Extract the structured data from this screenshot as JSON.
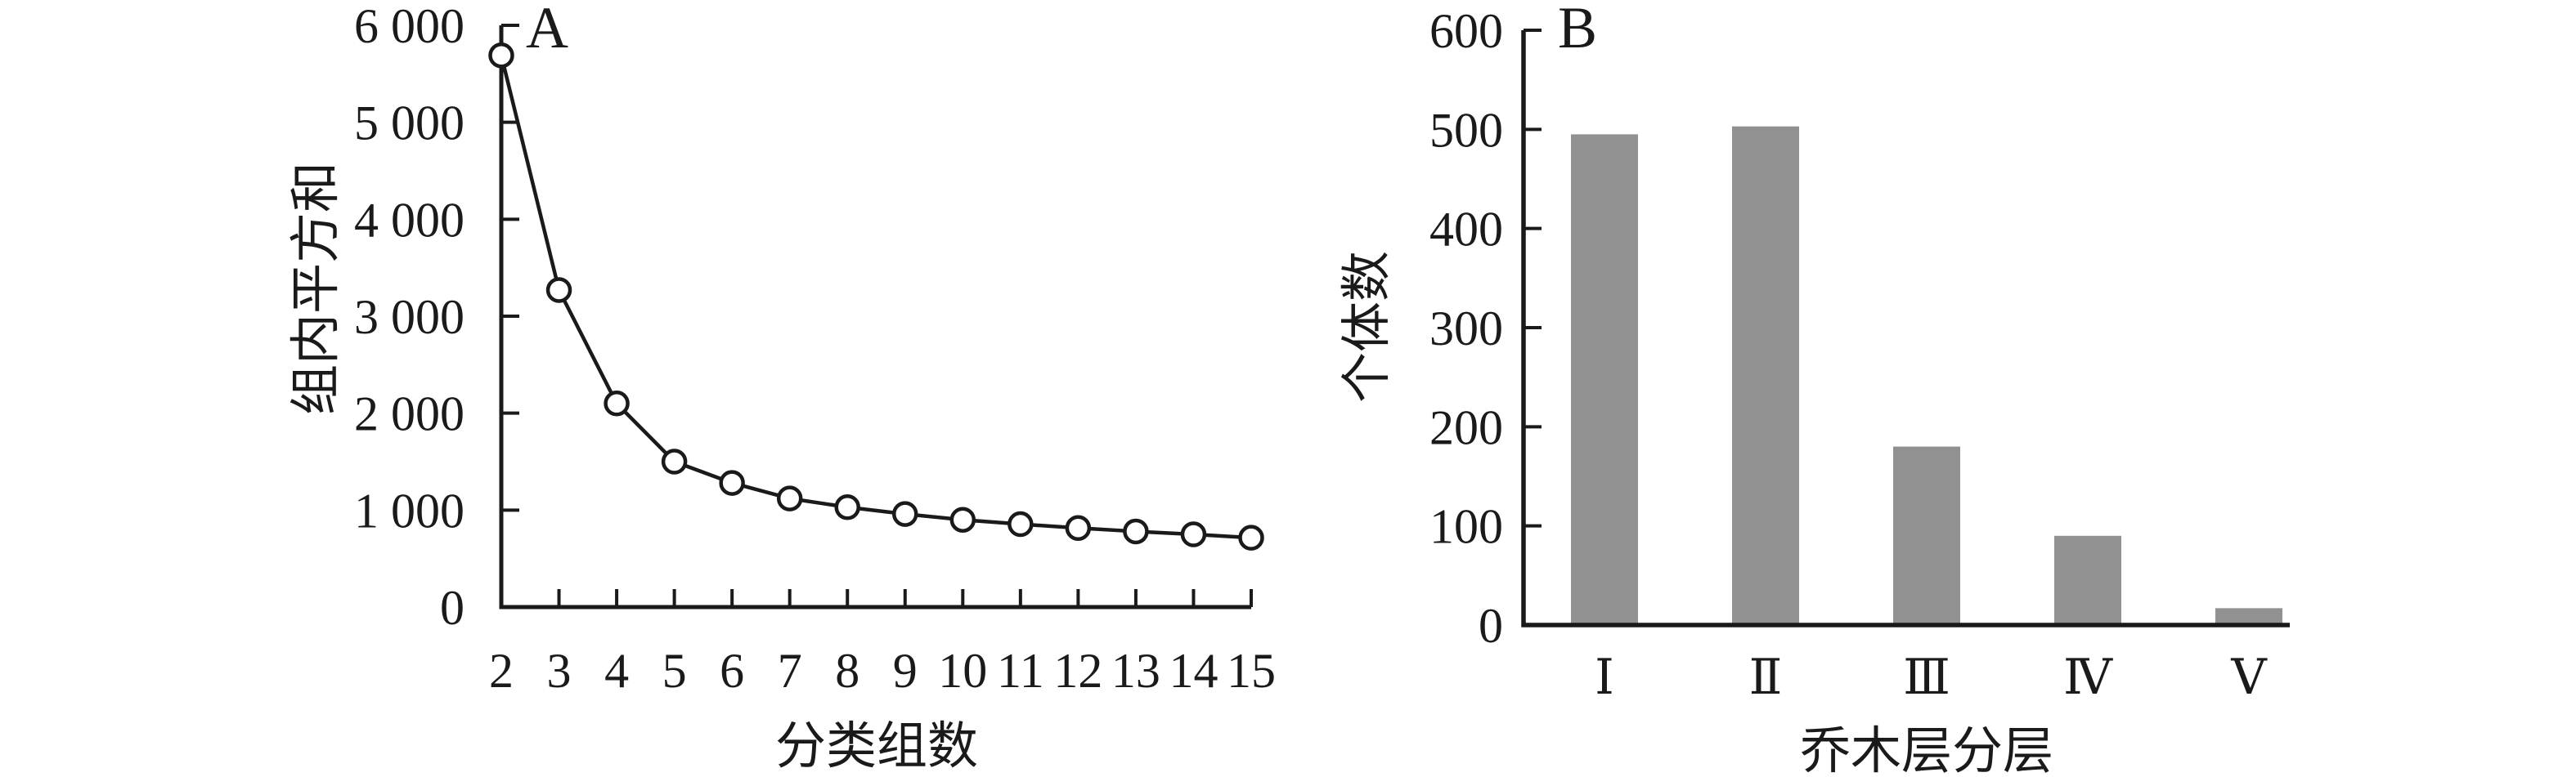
{
  "figure": {
    "background": "#ffffff",
    "text_color": "#1a1a1a",
    "axis_color": "#1a1a1a"
  },
  "chart_data": [
    {
      "panel_label": "A",
      "type": "line",
      "marker": "open-circle",
      "x": [
        2,
        3,
        4,
        5,
        6,
        7,
        8,
        9,
        10,
        11,
        12,
        13,
        14,
        15
      ],
      "values": [
        5690,
        3270,
        2100,
        1500,
        1280,
        1120,
        1030,
        960,
        900,
        855,
        815,
        780,
        750,
        715
      ],
      "xtick_labels": [
        "2",
        "3",
        "4",
        "5",
        "6",
        "7",
        "8",
        "9",
        "10",
        "11",
        "12",
        "13",
        "14",
        "15"
      ],
      "ytick_labels": [
        "0",
        "1 000",
        "2 000",
        "3 000",
        "4 000",
        "5 000",
        "6 000"
      ],
      "ylim": [
        0,
        6000
      ],
      "ytick_interval": 1000,
      "xlabel": "分类组数",
      "ylabel": "组内平方和",
      "line_color": "#1a1a1a",
      "marker_fill": "#ffffff",
      "grid": false,
      "legend_position": "none"
    },
    {
      "panel_label": "B",
      "type": "bar",
      "categories": [
        "Ⅰ",
        "Ⅱ",
        "Ⅲ",
        "Ⅳ",
        "Ⅴ"
      ],
      "values": [
        495,
        503,
        180,
        90,
        17
      ],
      "ytick_labels": [
        "0",
        "100",
        "200",
        "300",
        "400",
        "500",
        "600"
      ],
      "ylim": [
        0,
        600
      ],
      "ytick_interval": 100,
      "xlabel": "乔木层分层",
      "ylabel": "个体数",
      "bar_color": "#919191",
      "grid": false,
      "legend_position": "none"
    }
  ]
}
